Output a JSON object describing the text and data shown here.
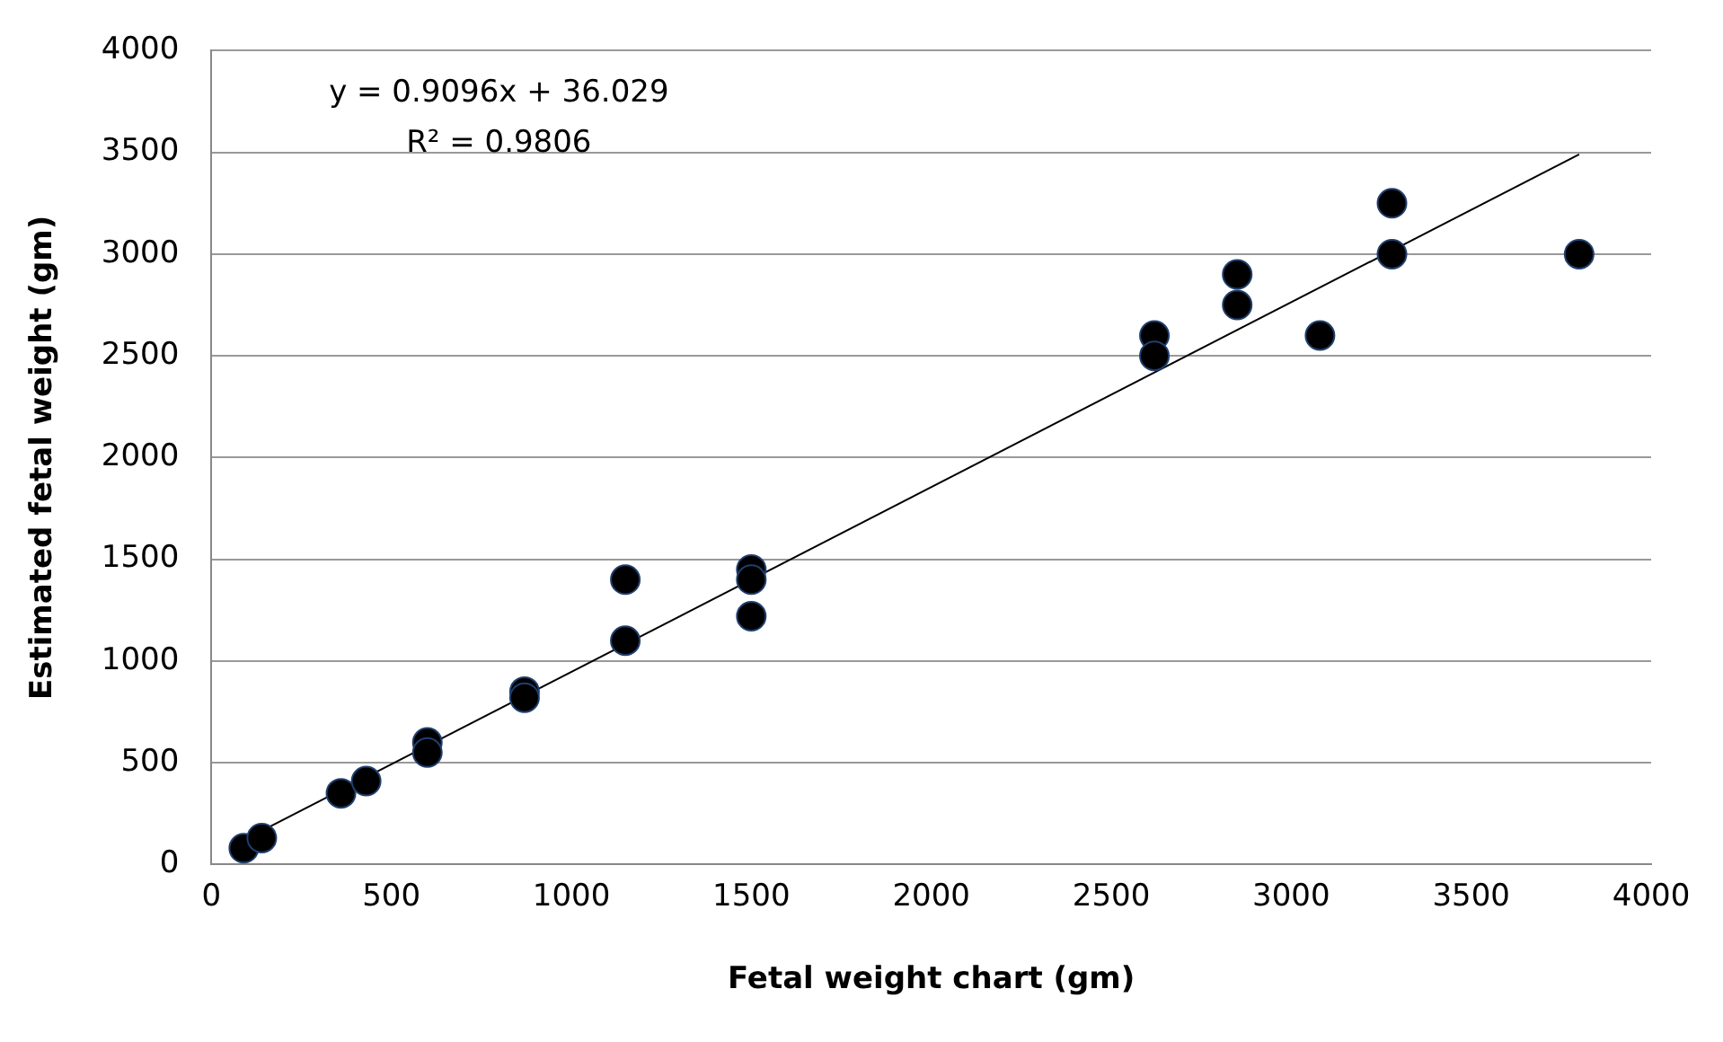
{
  "chart_data": {
    "type": "scatter",
    "xlabel": "Fetal weight chart (gm)",
    "ylabel": "Estimated fetal weight (gm)",
    "xlim": [
      0,
      4000
    ],
    "xticks": [
      0,
      500,
      1000,
      1500,
      2000,
      2500,
      3000,
      3500,
      4000
    ],
    "ylim": [
      0,
      4000
    ],
    "yticks": [
      0,
      500,
      1000,
      1500,
      2000,
      2500,
      3000,
      3500,
      4000
    ],
    "grid": "y",
    "legend": false,
    "marker": "circle",
    "annotations": [
      "y = 0.9096x + 36.029",
      "R² = 0.9806"
    ],
    "series": [
      {
        "color": "#000000",
        "x": [
          90,
          140,
          360,
          430,
          600,
          600,
          870,
          870,
          1150,
          1150,
          1500,
          1500,
          1500,
          2620,
          2620,
          2850,
          2850,
          3080,
          3280,
          3280,
          3800
        ],
        "values": [
          80,
          130,
          350,
          410,
          600,
          550,
          850,
          820,
          1400,
          1100,
          1450,
          1400,
          1220,
          2600,
          2500,
          2900,
          2750,
          2600,
          3250,
          3000,
          3000
        ]
      },
      {
        "type": "line",
        "color": "#000000",
        "x": [
          90,
          3800
        ],
        "values": [
          120,
          3490
        ],
        "marker": "none"
      }
    ]
  }
}
